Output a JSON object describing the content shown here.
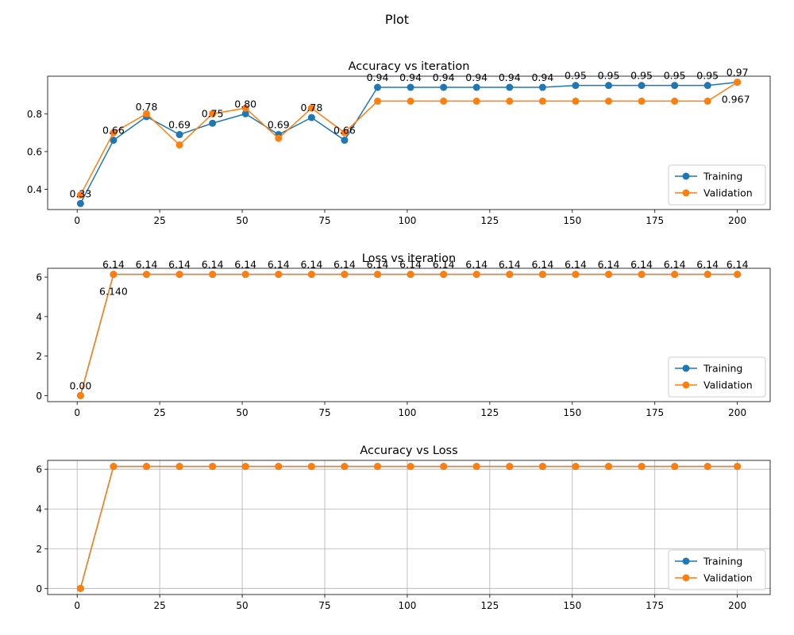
{
  "figure": {
    "suptitle": "Plot"
  },
  "colors": {
    "training": "#1f77b4",
    "validation": "#ff7f0e",
    "grid": "#b0b0b0",
    "axis": "#000000"
  },
  "chart_data": [
    {
      "type": "line",
      "title": "Accuracy vs iteration",
      "xlabel": "",
      "ylabel": "",
      "x": [
        1,
        11,
        21,
        31,
        41,
        51,
        61,
        71,
        81,
        91,
        101,
        111,
        121,
        131,
        141,
        151,
        161,
        171,
        181,
        191,
        200
      ],
      "series": [
        {
          "name": "Training",
          "values": [
            0.325,
            0.66,
            0.785,
            0.69,
            0.75,
            0.8,
            0.69,
            0.78,
            0.66,
            0.94,
            0.94,
            0.94,
            0.94,
            0.94,
            0.94,
            0.95,
            0.95,
            0.95,
            0.95,
            0.95,
            0.967
          ]
        },
        {
          "name": "Validation",
          "values": [
            0.37,
            0.7,
            0.8,
            0.635,
            0.8,
            0.83,
            0.67,
            0.83,
            0.7,
            0.867,
            0.867,
            0.867,
            0.867,
            0.867,
            0.867,
            0.867,
            0.867,
            0.867,
            0.867,
            0.867,
            0.967
          ]
        }
      ],
      "annotations": [
        {
          "x": 1,
          "y": 0.325,
          "text": "0.33",
          "series": "Training",
          "pos": "above"
        },
        {
          "x": 11,
          "y": 0.66,
          "text": "0.66",
          "series": "Training",
          "pos": "above"
        },
        {
          "x": 21,
          "y": 0.785,
          "text": "0.78",
          "series": "Training",
          "pos": "above"
        },
        {
          "x": 31,
          "y": 0.69,
          "text": "0.69",
          "series": "Training",
          "pos": "above"
        },
        {
          "x": 41,
          "y": 0.75,
          "text": "0.75",
          "series": "Training",
          "pos": "above"
        },
        {
          "x": 51,
          "y": 0.8,
          "text": "0.80",
          "series": "Training",
          "pos": "above"
        },
        {
          "x": 61,
          "y": 0.69,
          "text": "0.69",
          "series": "Training",
          "pos": "above"
        },
        {
          "x": 71,
          "y": 0.78,
          "text": "0.78",
          "series": "Training",
          "pos": "above"
        },
        {
          "x": 81,
          "y": 0.66,
          "text": "0.66",
          "series": "Training",
          "pos": "above"
        },
        {
          "x": 91,
          "y": 0.94,
          "text": "0.94",
          "series": "Training",
          "pos": "above"
        },
        {
          "x": 101,
          "y": 0.94,
          "text": "0.94",
          "series": "Training",
          "pos": "above"
        },
        {
          "x": 111,
          "y": 0.94,
          "text": "0.94",
          "series": "Training",
          "pos": "above"
        },
        {
          "x": 121,
          "y": 0.94,
          "text": "0.94",
          "series": "Training",
          "pos": "above"
        },
        {
          "x": 131,
          "y": 0.94,
          "text": "0.94",
          "series": "Training",
          "pos": "above"
        },
        {
          "x": 141,
          "y": 0.94,
          "text": "0.94",
          "series": "Training",
          "pos": "above"
        },
        {
          "x": 151,
          "y": 0.95,
          "text": "0.95",
          "series": "Training",
          "pos": "above"
        },
        {
          "x": 161,
          "y": 0.95,
          "text": "0.95",
          "series": "Training",
          "pos": "above"
        },
        {
          "x": 171,
          "y": 0.95,
          "text": "0.95",
          "series": "Training",
          "pos": "above"
        },
        {
          "x": 181,
          "y": 0.95,
          "text": "0.95",
          "series": "Training",
          "pos": "above"
        },
        {
          "x": 191,
          "y": 0.95,
          "text": "0.95",
          "series": "Training",
          "pos": "above"
        },
        {
          "x": 200,
          "y": 0.967,
          "text": "0.97",
          "series": "Training",
          "pos": "above"
        },
        {
          "x": 200,
          "y": 0.967,
          "text": "0.967",
          "series": "Validation",
          "pos": "below"
        }
      ],
      "xticks": [
        0,
        25,
        50,
        75,
        100,
        125,
        150,
        175,
        200
      ],
      "yticks": [
        0.4,
        0.6,
        0.8
      ],
      "xlim": [
        -8.95,
        209.95
      ],
      "ylim": [
        0.293,
        0.999
      ],
      "grid": false,
      "legend": "lower right"
    },
    {
      "type": "line",
      "title": "Loss vs iteration",
      "xlabel": "",
      "ylabel": "",
      "x": [
        1,
        11,
        21,
        31,
        41,
        51,
        61,
        71,
        81,
        91,
        101,
        111,
        121,
        131,
        141,
        151,
        161,
        171,
        181,
        191,
        200
      ],
      "series": [
        {
          "name": "Training",
          "values": [
            0,
            6.14,
            6.14,
            6.14,
            6.14,
            6.14,
            6.14,
            6.14,
            6.14,
            6.14,
            6.14,
            6.14,
            6.14,
            6.14,
            6.14,
            6.14,
            6.14,
            6.14,
            6.14,
            6.14,
            6.14
          ]
        },
        {
          "name": "Validation",
          "values": [
            0,
            6.14,
            6.14,
            6.14,
            6.14,
            6.14,
            6.14,
            6.14,
            6.14,
            6.14,
            6.14,
            6.14,
            6.14,
            6.14,
            6.14,
            6.14,
            6.14,
            6.14,
            6.14,
            6.14,
            6.14
          ]
        }
      ],
      "annotations": [
        {
          "x": 1,
          "y": 0,
          "text": "0.00",
          "series": "Training",
          "pos": "above"
        },
        {
          "x": 11,
          "y": 6.14,
          "text": "6.14",
          "series": "Training",
          "pos": "above"
        },
        {
          "x": 21,
          "y": 6.14,
          "text": "6.14",
          "series": "Training",
          "pos": "above"
        },
        {
          "x": 31,
          "y": 6.14,
          "text": "6.14",
          "series": "Training",
          "pos": "above"
        },
        {
          "x": 41,
          "y": 6.14,
          "text": "6.14",
          "series": "Training",
          "pos": "above"
        },
        {
          "x": 51,
          "y": 6.14,
          "text": "6.14",
          "series": "Training",
          "pos": "above"
        },
        {
          "x": 61,
          "y": 6.14,
          "text": "6.14",
          "series": "Training",
          "pos": "above"
        },
        {
          "x": 71,
          "y": 6.14,
          "text": "6.14",
          "series": "Training",
          "pos": "above"
        },
        {
          "x": 81,
          "y": 6.14,
          "text": "6.14",
          "series": "Training",
          "pos": "above"
        },
        {
          "x": 91,
          "y": 6.14,
          "text": "6.14",
          "series": "Training",
          "pos": "above"
        },
        {
          "x": 101,
          "y": 6.14,
          "text": "6.14",
          "series": "Training",
          "pos": "above"
        },
        {
          "x": 111,
          "y": 6.14,
          "text": "6.14",
          "series": "Training",
          "pos": "above"
        },
        {
          "x": 121,
          "y": 6.14,
          "text": "6.14",
          "series": "Training",
          "pos": "above"
        },
        {
          "x": 131,
          "y": 6.14,
          "text": "6.14",
          "series": "Training",
          "pos": "above"
        },
        {
          "x": 141,
          "y": 6.14,
          "text": "6.14",
          "series": "Training",
          "pos": "above"
        },
        {
          "x": 151,
          "y": 6.14,
          "text": "6.14",
          "series": "Training",
          "pos": "above"
        },
        {
          "x": 161,
          "y": 6.14,
          "text": "6.14",
          "series": "Training",
          "pos": "above"
        },
        {
          "x": 171,
          "y": 6.14,
          "text": "6.14",
          "series": "Training",
          "pos": "above"
        },
        {
          "x": 181,
          "y": 6.14,
          "text": "6.14",
          "series": "Training",
          "pos": "above"
        },
        {
          "x": 191,
          "y": 6.14,
          "text": "6.14",
          "series": "Training",
          "pos": "above"
        },
        {
          "x": 200,
          "y": 6.14,
          "text": "6.14",
          "series": "Training",
          "pos": "above"
        },
        {
          "x": 11,
          "y": 6.14,
          "text": "6.140",
          "series": "Validation",
          "pos": "below"
        }
      ],
      "xticks": [
        0,
        25,
        50,
        75,
        100,
        125,
        150,
        175,
        200
      ],
      "yticks": [
        0,
        2,
        4,
        6
      ],
      "xlim": [
        -8.95,
        209.95
      ],
      "ylim": [
        -0.307,
        6.447
      ],
      "grid": false,
      "legend": "lower right"
    },
    {
      "type": "line",
      "title": "Accuracy vs Loss",
      "xlabel": "",
      "ylabel": "",
      "x": [
        1,
        11,
        21,
        31,
        41,
        51,
        61,
        71,
        81,
        91,
        101,
        111,
        121,
        131,
        141,
        151,
        161,
        171,
        181,
        191,
        200
      ],
      "series": [
        {
          "name": "Training",
          "values": [
            0,
            6.14,
            6.14,
            6.14,
            6.14,
            6.14,
            6.14,
            6.14,
            6.14,
            6.14,
            6.14,
            6.14,
            6.14,
            6.14,
            6.14,
            6.14,
            6.14,
            6.14,
            6.14,
            6.14,
            6.14
          ]
        },
        {
          "name": "Validation",
          "values": [
            0,
            6.14,
            6.14,
            6.14,
            6.14,
            6.14,
            6.14,
            6.14,
            6.14,
            6.14,
            6.14,
            6.14,
            6.14,
            6.14,
            6.14,
            6.14,
            6.14,
            6.14,
            6.14,
            6.14,
            6.14
          ]
        }
      ],
      "annotations": [],
      "xticks": [
        0,
        25,
        50,
        75,
        100,
        125,
        150,
        175,
        200
      ],
      "yticks": [
        0,
        2,
        4,
        6
      ],
      "xlim": [
        -8.95,
        209.95
      ],
      "ylim": [
        -0.307,
        6.447
      ],
      "grid": true,
      "legend": "lower right"
    }
  ]
}
